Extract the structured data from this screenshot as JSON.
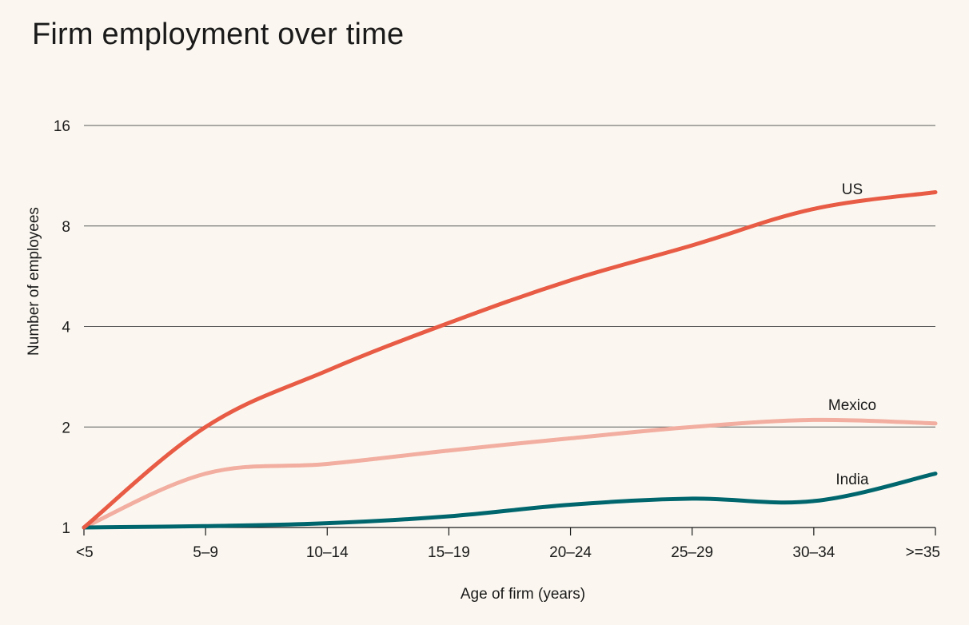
{
  "chart_data": {
    "type": "line",
    "title": "Firm employment over time",
    "xlabel": "Age of firm (years)",
    "ylabel": "Number of employees",
    "y_scale": "log2",
    "ylim": [
      1,
      16
    ],
    "yticks": [
      1,
      2,
      4,
      8,
      16
    ],
    "grid": "horizontal",
    "categories": [
      "<5",
      "5–9",
      "10–14",
      "15–19",
      "20–24",
      "25–29",
      "30–34",
      ">=35"
    ],
    "series": [
      {
        "name": "US",
        "color": "#e85b45",
        "values": [
          1.0,
          2.0,
          2.95,
          4.1,
          5.5,
          7.0,
          9.0,
          10.1
        ]
      },
      {
        "name": "Mexico",
        "color": "#f2aea0",
        "values": [
          1.0,
          1.45,
          1.55,
          1.7,
          1.85,
          2.0,
          2.1,
          2.05
        ]
      },
      {
        "name": "India",
        "color": "#00666e",
        "values": [
          1.0,
          1.01,
          1.03,
          1.08,
          1.17,
          1.22,
          1.2,
          1.45
        ]
      }
    ]
  }
}
